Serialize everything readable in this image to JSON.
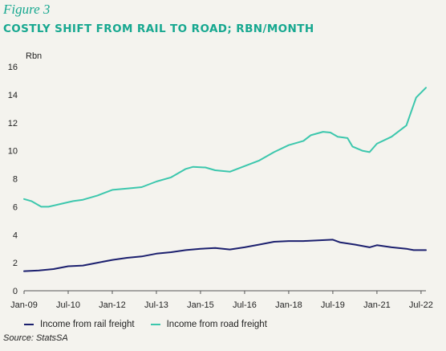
{
  "figure_label": "Figure 3",
  "title": "COSTLY SHIFT FROM RAIL TO ROAD; RBN/MONTH",
  "source": "Source: StatsSA",
  "chart_data": {
    "type": "line",
    "ylabel": "Rbn",
    "ylim": [
      0,
      16
    ],
    "yticks": [
      0,
      2,
      4,
      6,
      8,
      10,
      12,
      14,
      16
    ],
    "xlim": [
      "2009-01",
      "2022-09"
    ],
    "xticks": [
      {
        "label": "Jan-09",
        "date": "2009-01"
      },
      {
        "label": "Jul-10",
        "date": "2010-07"
      },
      {
        "label": "Jan-12",
        "date": "2012-01"
      },
      {
        "label": "Jul-13",
        "date": "2013-07"
      },
      {
        "label": "Jan-15",
        "date": "2015-01"
      },
      {
        "label": "Jul-16",
        "date": "2016-07"
      },
      {
        "label": "Jan-18",
        "date": "2018-01"
      },
      {
        "label": "Jul-19",
        "date": "2019-07"
      },
      {
        "label": "Jan-21",
        "date": "2021-01"
      },
      {
        "label": "Jul-22",
        "date": "2022-07"
      }
    ],
    "grid": false,
    "legend_position": "bottom",
    "series": [
      {
        "name": "Income from rail freight",
        "color": "#1b1f6e",
        "points": [
          [
            "2009-01",
            1.4
          ],
          [
            "2009-07",
            1.45
          ],
          [
            "2010-01",
            1.55
          ],
          [
            "2010-07",
            1.75
          ],
          [
            "2011-01",
            1.8
          ],
          [
            "2011-07",
            2.0
          ],
          [
            "2012-01",
            2.2
          ],
          [
            "2012-07",
            2.35
          ],
          [
            "2013-01",
            2.45
          ],
          [
            "2013-07",
            2.65
          ],
          [
            "2014-01",
            2.75
          ],
          [
            "2014-07",
            2.9
          ],
          [
            "2015-01",
            3.0
          ],
          [
            "2015-07",
            3.05
          ],
          [
            "2016-01",
            2.95
          ],
          [
            "2016-07",
            3.1
          ],
          [
            "2017-01",
            3.3
          ],
          [
            "2017-07",
            3.5
          ],
          [
            "2018-01",
            3.55
          ],
          [
            "2018-07",
            3.55
          ],
          [
            "2019-01",
            3.6
          ],
          [
            "2019-07",
            3.65
          ],
          [
            "2019-10",
            3.45
          ],
          [
            "2020-04",
            3.3
          ],
          [
            "2020-10",
            3.1
          ],
          [
            "2021-01",
            3.25
          ],
          [
            "2021-07",
            3.1
          ],
          [
            "2022-01",
            3.0
          ],
          [
            "2022-04",
            2.9
          ],
          [
            "2022-09",
            2.9
          ]
        ]
      },
      {
        "name": "Income from road freight",
        "color": "#3cc7ad",
        "points": [
          [
            "2009-01",
            6.55
          ],
          [
            "2009-04",
            6.4
          ],
          [
            "2009-08",
            6.0
          ],
          [
            "2009-11",
            6.0
          ],
          [
            "2010-04",
            6.2
          ],
          [
            "2010-09",
            6.4
          ],
          [
            "2011-01",
            6.5
          ],
          [
            "2011-07",
            6.8
          ],
          [
            "2012-01",
            7.2
          ],
          [
            "2012-07",
            7.3
          ],
          [
            "2013-01",
            7.4
          ],
          [
            "2013-07",
            7.8
          ],
          [
            "2014-01",
            8.1
          ],
          [
            "2014-07",
            8.7
          ],
          [
            "2014-10",
            8.85
          ],
          [
            "2015-03",
            8.8
          ],
          [
            "2015-07",
            8.6
          ],
          [
            "2016-01",
            8.5
          ],
          [
            "2016-07",
            8.9
          ],
          [
            "2017-01",
            9.3
          ],
          [
            "2017-07",
            9.9
          ],
          [
            "2018-01",
            10.4
          ],
          [
            "2018-07",
            10.7
          ],
          [
            "2018-10",
            11.1
          ],
          [
            "2019-03",
            11.35
          ],
          [
            "2019-06",
            11.3
          ],
          [
            "2019-09",
            11.0
          ],
          [
            "2020-01",
            10.9
          ],
          [
            "2020-03",
            10.3
          ],
          [
            "2020-07",
            10.0
          ],
          [
            "2020-10",
            9.9
          ],
          [
            "2021-01",
            10.5
          ],
          [
            "2021-07",
            11.0
          ],
          [
            "2022-01",
            11.8
          ],
          [
            "2022-05",
            13.8
          ],
          [
            "2022-09",
            14.5
          ]
        ]
      }
    ]
  }
}
